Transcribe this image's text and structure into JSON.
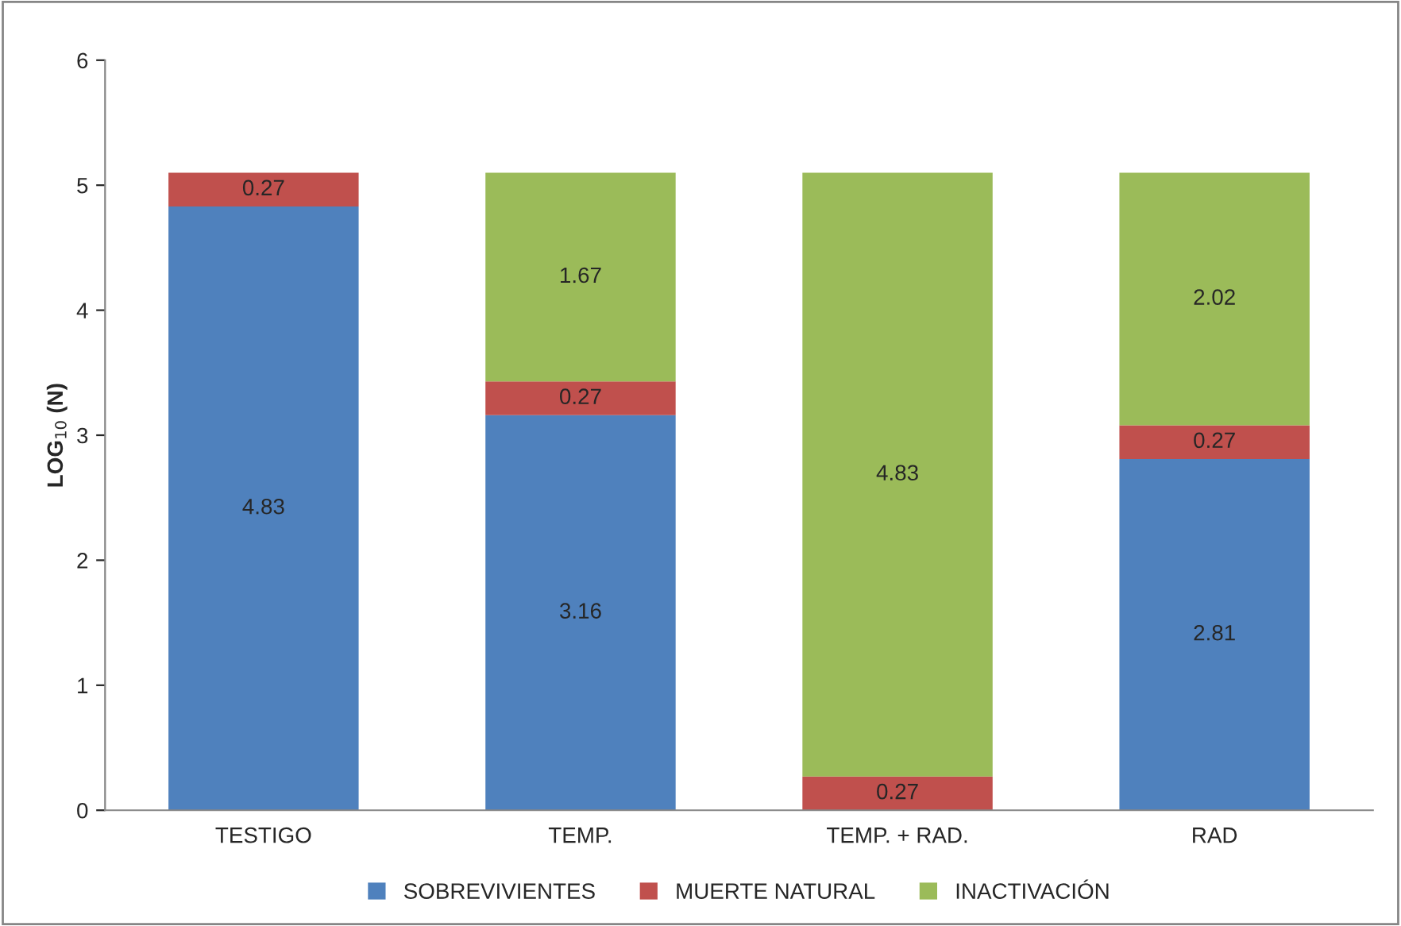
{
  "chart_data": {
    "type": "bar",
    "stacked": true,
    "ylabel": "LOG$_{10}$ (N)",
    "categories": [
      "TESTIGO",
      "TEMP.",
      "TEMP. + RAD.",
      "RAD"
    ],
    "series": [
      {
        "name": "SOBREVIVIENTES",
        "color": "#4f81bd",
        "values": [
          4.83,
          3.16,
          null,
          2.81
        ],
        "value_labels": [
          "4.83",
          "3.16",
          null,
          "2.81"
        ]
      },
      {
        "name": "MUERTE NATURAL",
        "color": "#c0504d",
        "values": [
          0.27,
          0.27,
          0.27,
          0.27
        ],
        "value_labels": [
          "0.27",
          "0.27",
          "0.27",
          "0.27"
        ]
      },
      {
        "name": "INACTIVACIÓN",
        "color": "#9bbb59",
        "values": [
          null,
          1.67,
          4.83,
          2.02
        ],
        "value_labels": [
          null,
          "1.67",
          "4.83",
          "2.02"
        ]
      }
    ],
    "ylim": [
      0,
      6
    ],
    "yticks": [
      0,
      1,
      2,
      3,
      4,
      5,
      6
    ],
    "grid": false,
    "legend": "bottom"
  }
}
